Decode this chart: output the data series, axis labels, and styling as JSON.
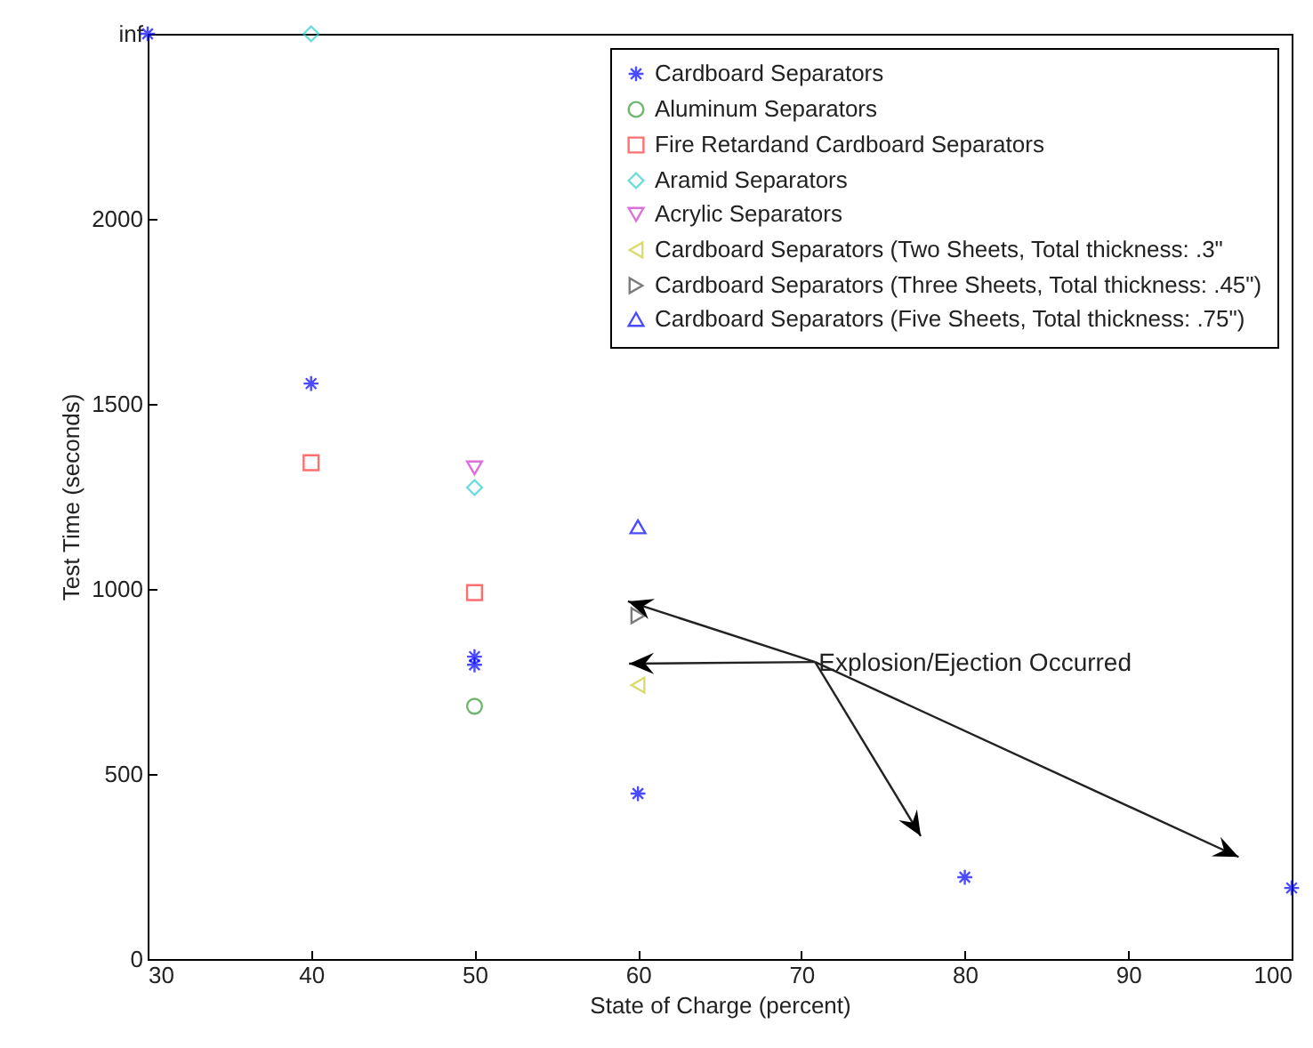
{
  "chart_data": {
    "type": "scatter",
    "xlabel": "State of Charge (percent)",
    "ylabel": "Test Time (seconds)",
    "xlim": [
      30,
      100
    ],
    "xticks": [
      30,
      40,
      50,
      60,
      70,
      80,
      90,
      100
    ],
    "ylim": [
      0,
      2500
    ],
    "yticks": [
      0,
      500,
      1000,
      1500,
      2000,
      {
        "value": 2500,
        "label": "inf"
      }
    ],
    "grid": false,
    "legend": "top right",
    "annotations": [
      "Explosion/Ejection Occurred"
    ],
    "series": [
      {
        "name": "Cardboard Separators",
        "color": "#0000ff",
        "marker": "cross",
        "x": [
          30,
          40,
          50,
          50,
          60,
          80,
          100
        ],
        "values": [
          2500,
          1555,
          817,
          795,
          447,
          221,
          192
        ]
      },
      {
        "name": "Aluminum Separators",
        "color": "#339933",
        "marker": "circle",
        "x": [
          50
        ],
        "values": [
          683
        ]
      },
      {
        "name": "Fire Retardand Cardboard Separators",
        "color": "#ff3333",
        "marker": "square",
        "x": [
          40,
          50
        ],
        "values": [
          1341,
          990
        ]
      },
      {
        "name": "Aramid Separators",
        "color": "#33cccc",
        "marker": "diamond",
        "x": [
          40,
          50
        ],
        "values": [
          2500,
          1274
        ]
      },
      {
        "name": "Acrylic Separators",
        "color": "#cc33cc",
        "marker": "triangle-down",
        "x": [
          50
        ],
        "values": [
          1327
        ]
      },
      {
        "name": "Cardboard Separators (Two Sheets, Total thickness: .3\"",
        "color": "#cccc33",
        "marker": "triangle-left",
        "x": [
          60
        ],
        "values": [
          740
        ]
      },
      {
        "name": "Cardboard Separators (Three Sheets, Total thickness: .45\")",
        "color": "#444444",
        "marker": "triangle-right",
        "x": [
          60
        ],
        "values": [
          928
        ]
      },
      {
        "name": "Cardboard Separators (Five Sheets, Total thickness: .75\")",
        "color": "#0000ff",
        "marker": "triangle",
        "x": [
          60
        ],
        "values": [
          1168
        ]
      }
    ]
  }
}
